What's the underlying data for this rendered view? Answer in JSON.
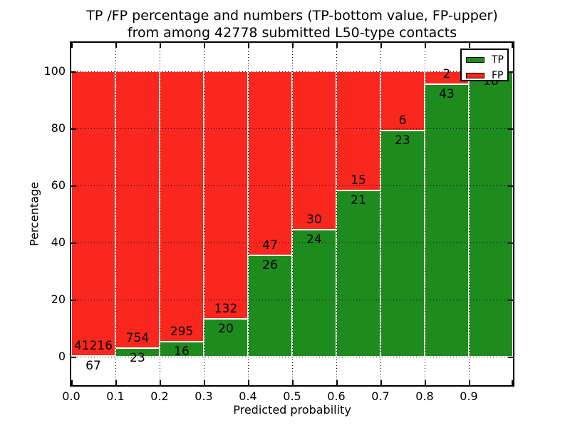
{
  "figure": {
    "title_line1": "TP /FP percentage and numbers (TP-bottom value, FP-upper)",
    "title_line2": "from among 42778 submitted L50-type contacts",
    "total_contacts": "42778"
  },
  "chart_data": {
    "type": "bar",
    "stacked": true,
    "title": "TP /FP percentage and numbers (TP-bottom value, FP-upper) from among 42778 submitted L50-type contacts",
    "xlabel": "Predicted probability",
    "ylabel": "Percentage",
    "xlim": [
      0.0,
      1.0
    ],
    "ylim": [
      -10,
      110
    ],
    "grid": true,
    "x_tick_labels": [
      "0.0",
      "0.1",
      "0.2",
      "0.3",
      "0.4",
      "0.5",
      "0.6",
      "0.7",
      "0.8",
      "0.9"
    ],
    "x_tick_values": [
      0.0,
      0.1,
      0.2,
      0.3,
      0.4,
      0.5,
      0.6,
      0.7,
      0.8,
      0.9
    ],
    "y_tick_labels": [
      "0",
      "20",
      "40",
      "60",
      "80",
      "100"
    ],
    "y_tick_values": [
      0,
      20,
      40,
      60,
      80,
      100
    ],
    "legend": {
      "position": "upper right",
      "entries": [
        {
          "label": "TP",
          "color": "#1e8b1e"
        },
        {
          "label": "FP",
          "color": "#f9271d"
        }
      ]
    },
    "series_note": "Each 0.1-wide bin stacks TP (green, bottom) and FP (red, top) to 100%. Counts are printed near the TP/FP boundary: FP count above it, TP count below it.",
    "bins": [
      {
        "range": [
          0.0,
          0.1
        ],
        "tp_count": 67,
        "fp_count": 41216,
        "tp_pct": 0.16,
        "fp_pct": 99.84
      },
      {
        "range": [
          0.1,
          0.2
        ],
        "tp_count": 23,
        "fp_count": 754,
        "tp_pct": 2.96,
        "fp_pct": 97.04
      },
      {
        "range": [
          0.2,
          0.3
        ],
        "tp_count": 16,
        "fp_count": 295,
        "tp_pct": 5.14,
        "fp_pct": 94.86
      },
      {
        "range": [
          0.3,
          0.4
        ],
        "tp_count": 20,
        "fp_count": 132,
        "tp_pct": 13.16,
        "fp_pct": 86.84
      },
      {
        "range": [
          0.4,
          0.5
        ],
        "tp_count": 26,
        "fp_count": 47,
        "tp_pct": 35.62,
        "fp_pct": 64.38
      },
      {
        "range": [
          0.5,
          0.6
        ],
        "tp_count": 24,
        "fp_count": 30,
        "tp_pct": 44.44,
        "fp_pct": 55.56
      },
      {
        "range": [
          0.6,
          0.7
        ],
        "tp_count": 21,
        "fp_count": 15,
        "tp_pct": 58.33,
        "fp_pct": 41.67
      },
      {
        "range": [
          0.7,
          0.8
        ],
        "tp_count": 23,
        "fp_count": 6,
        "tp_pct": 79.31,
        "fp_pct": 20.69
      },
      {
        "range": [
          0.8,
          0.9
        ],
        "tp_count": 43,
        "fp_count": 2,
        "tp_pct": 95.56,
        "fp_pct": 4.44
      },
      {
        "range": [
          0.9,
          1.0
        ],
        "tp_count": 18,
        "fp_count": null,
        "tp_pct": 100.0,
        "fp_pct": 0.0
      }
    ],
    "colors": {
      "tp": "#1e8b1e",
      "fp": "#f9271d",
      "bar_edge": "#ffffff",
      "grid": "#000000",
      "text": "#000000",
      "background": "#ffffff"
    }
  }
}
